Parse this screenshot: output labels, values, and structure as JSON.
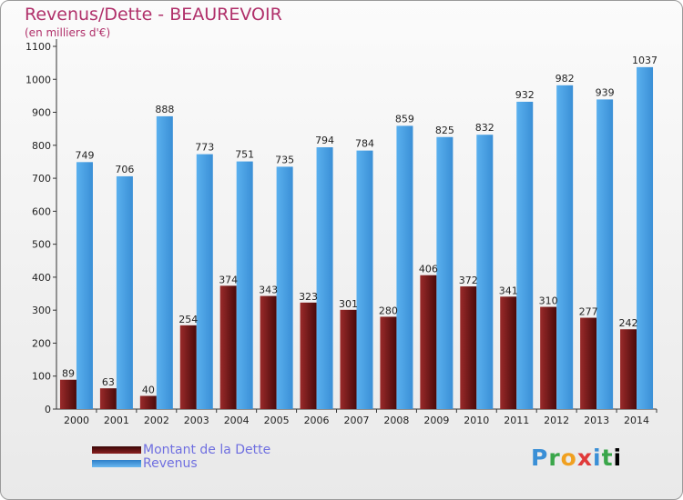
{
  "chart_data": {
    "type": "bar",
    "title": "Revenus/Dette - BEAUREVOIR",
    "subtitle": "(en milliers d'€)",
    "categories": [
      "2000",
      "2001",
      "2002",
      "2003",
      "2004",
      "2005",
      "2006",
      "2007",
      "2008",
      "2009",
      "2010",
      "2011",
      "2012",
      "2013",
      "2014"
    ],
    "series": [
      {
        "name": "Montant de la Dette",
        "color": "#7a1a1a",
        "values": [
          89,
          63,
          40,
          254,
          374,
          343,
          323,
          301,
          280,
          406,
          372,
          341,
          310,
          277,
          242
        ]
      },
      {
        "name": "Revenus",
        "color": "#4aa3e8",
        "values": [
          749,
          706,
          888,
          773,
          751,
          735,
          794,
          784,
          859,
          825,
          832,
          932,
          982,
          939,
          1037
        ]
      }
    ],
    "ylim": [
      0,
      1100
    ],
    "yticks": [
      0,
      100,
      200,
      300,
      400,
      500,
      600,
      700,
      800,
      900,
      1000,
      1100
    ],
    "grid": false,
    "legend": "bottom-left"
  },
  "logo": {
    "letters": [
      "P",
      "r",
      "o",
      "x",
      "i",
      "t"
    ],
    "extra": "i"
  }
}
